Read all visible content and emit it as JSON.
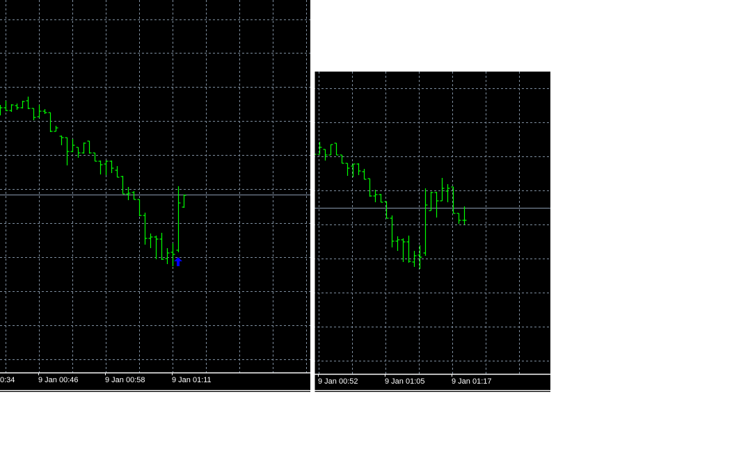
{
  "colors": {
    "background": "#000000",
    "bar": "#00ff00",
    "grid": "#7f8fa0",
    "price_line": "#8a9ab0",
    "signal_arrow": "#0000ff",
    "axis_text": "#ffffff"
  },
  "chart_data": [
    {
      "type": "ohlc",
      "grid": true,
      "x_tick_labels": [
        "0:34",
        "9 Jan 00:46",
        "9 Jan 00:58",
        "9 Jan 01:11"
      ],
      "bars_ohlc": [
        [
          445,
          449,
          434,
          445
        ],
        [
          445,
          455,
          440,
          441
        ],
        [
          441,
          450,
          439,
          449
        ],
        [
          448,
          451,
          442,
          445
        ],
        [
          445,
          455,
          444,
          454
        ],
        [
          455,
          461,
          443,
          444
        ],
        [
          444,
          444,
          427,
          431
        ],
        [
          432,
          449,
          431,
          440
        ],
        [
          440,
          443,
          436,
          438
        ],
        [
          438,
          438,
          410,
          411
        ],
        [
          411,
          419,
          411,
          416
        ],
        [
          404,
          405,
          391,
          402
        ],
        [
          402,
          402,
          362,
          382
        ],
        [
          382,
          400,
          381,
          391
        ],
        [
          388,
          388,
          373,
          380
        ],
        [
          380,
          395,
          379,
          394
        ],
        [
          397,
          397,
          379,
          380
        ],
        [
          380,
          380,
          368,
          368
        ],
        [
          368,
          369,
          349,
          363
        ],
        [
          364,
          369,
          348,
          368
        ],
        [
          368,
          369,
          351,
          358
        ],
        [
          355,
          361,
          345,
          345
        ],
        [
          346,
          347,
          321,
          321
        ],
        [
          321,
          331,
          312,
          322
        ],
        [
          323,
          325,
          313,
          313
        ],
        [
          313,
          313,
          289,
          290
        ],
        [
          290,
          294,
          248,
          257
        ],
        [
          257,
          264,
          243,
          259
        ],
        [
          259,
          261,
          227,
          256
        ],
        [
          256,
          265,
          226,
          227
        ],
        [
          228,
          243,
          220,
          236
        ],
        [
          237,
          250,
          217,
          234
        ],
        [
          240,
          332,
          237,
          308
        ],
        [
          302,
          320,
          301,
          319
        ]
      ],
      "current_price": 320,
      "signals": [
        {
          "type": "buy-arrow",
          "bar_index": 32
        }
      ]
    },
    {
      "type": "ohlc",
      "grid": true,
      "x_tick_labels": [
        "9 Jan 00:52",
        "9 Jan 01:05",
        "9 Jan 01:17"
      ],
      "bars_ohlc": [
        [
          378,
          400,
          357,
          378
        ],
        [
          378,
          396,
          378,
          388
        ],
        [
          385,
          385,
          369,
          377
        ],
        [
          377,
          392,
          377,
          392
        ],
        [
          394,
          394,
          377,
          377
        ],
        [
          377,
          377,
          365,
          365
        ],
        [
          365,
          365,
          347,
          358
        ],
        [
          361,
          364,
          345,
          364
        ],
        [
          364,
          365,
          348,
          354
        ],
        [
          353,
          357,
          342,
          342
        ],
        [
          343,
          343,
          317,
          318
        ],
        [
          318,
          327,
          309,
          320
        ],
        [
          320,
          321,
          309,
          309
        ],
        [
          310,
          310,
          286,
          286
        ],
        [
          286,
          290,
          244,
          253
        ],
        [
          253,
          260,
          239,
          255
        ],
        [
          255,
          257,
          223,
          252
        ],
        [
          252,
          261,
          222,
          224
        ],
        [
          223,
          239,
          216,
          232
        ],
        [
          233,
          247,
          213,
          230
        ],
        [
          236,
          329,
          232,
          305
        ],
        [
          297,
          324,
          297,
          323
        ],
        [
          323,
          324,
          287,
          311
        ],
        [
          311,
          344,
          311,
          329
        ],
        [
          325,
          335,
          309,
          329
        ],
        [
          331,
          331,
          293,
          293
        ],
        [
          293,
          293,
          278,
          283
        ],
        [
          283,
          303,
          277,
          283
        ]
      ],
      "current_price": 301,
      "signals": []
    }
  ]
}
